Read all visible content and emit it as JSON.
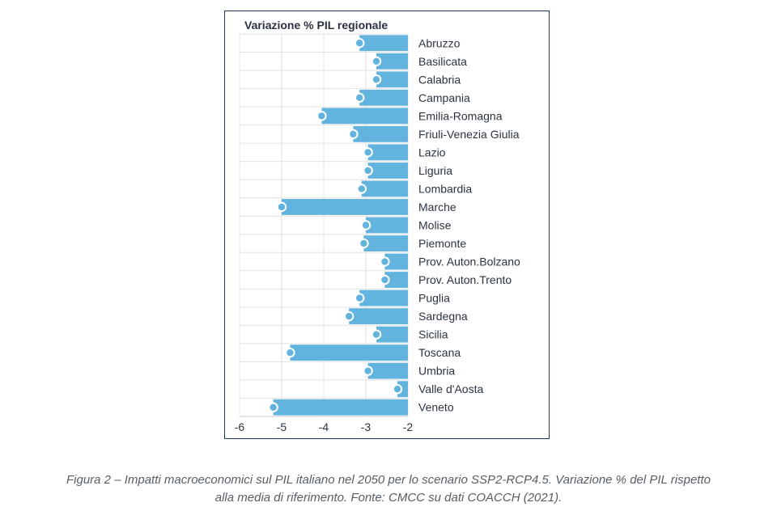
{
  "chart_data": {
    "type": "bar",
    "orientation": "horizontal",
    "title": "Variazione % PIL regionale",
    "xlim": [
      -6,
      -2
    ],
    "xticks": [
      -6,
      -5,
      -4,
      -3,
      -2
    ],
    "grid": true,
    "bar_color": "#62b4df",
    "marker_color": "#62b4df",
    "categories": [
      "Abruzzo",
      "Basilicata",
      "Calabria",
      "Campania",
      "Emilia-Romagna",
      "Friuli-Venezia Giulia",
      "Lazio",
      "Liguria",
      "Lombardia",
      "Marche",
      "Molise",
      "Piemonte",
      "Prov. Auton.Bolzano",
      "Prov. Auton.Trento",
      "Puglia",
      "Sardegna",
      "Sicilia",
      "Toscana",
      "Umbria",
      "Valle d'Aosta",
      "Veneto"
    ],
    "values": [
      -3.15,
      -2.75,
      -2.75,
      -3.15,
      -4.05,
      -3.3,
      -2.95,
      -2.95,
      -3.1,
      -5.0,
      -3.0,
      -3.05,
      -2.55,
      -2.55,
      -3.15,
      -3.4,
      -2.75,
      -4.8,
      -2.95,
      -2.25,
      -5.2
    ]
  },
  "caption": {
    "line1": "Figura 2 – Impatti macroeconomici sul PIL italiano nel 2050 per lo scenario SSP2-RCP4.5. Variazione % del PIL rispetto",
    "line2": "alla media di riferimento. Fonte: CMCC su dati COACCH (2021)."
  }
}
